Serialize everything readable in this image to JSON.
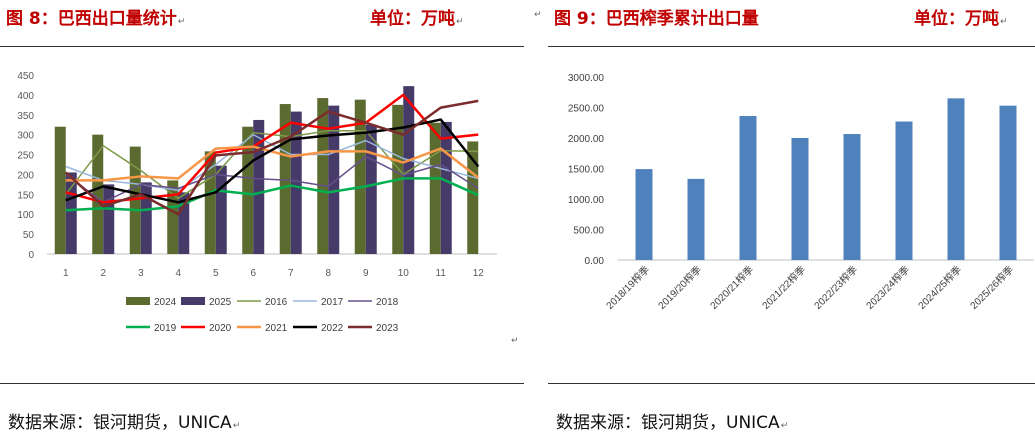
{
  "left": {
    "title": "图 8：巴西出口量统计",
    "unit": "单位：万吨",
    "source": "数据来源：银河期货，UNICA"
  },
  "right": {
    "title": "图 9：巴西榨季累计出口量",
    "unit": "单位：万吨",
    "source": "数据来源：银河期货，UNICA"
  },
  "chart_data": [
    {
      "type": "bar",
      "categories": [
        "1",
        "2",
        "3",
        "4",
        "5",
        "6",
        "7",
        "8",
        "9",
        "10",
        "11",
        "12"
      ],
      "ylim": [
        0,
        450
      ],
      "yticks": [
        0,
        50,
        100,
        150,
        200,
        250,
        300,
        350,
        400,
        450
      ],
      "legend_placement": "bottom",
      "bar_series": [
        {
          "name": "2024",
          "color": "#5b6b2f",
          "values": [
            320,
            300,
            270,
            185,
            258,
            320,
            377,
            392,
            388,
            375,
            330,
            283
          ]
        },
        {
          "name": "2025",
          "color": "#463a68",
          "values": [
            205,
            175,
            180,
            155,
            222,
            337,
            358,
            373,
            325,
            422,
            332,
            null
          ]
        }
      ],
      "line_series": [
        {
          "name": "2016",
          "color": "#7e9a48",
          "width": 1.5,
          "values": [
            150,
            272,
            210,
            140,
            200,
            305,
            295,
            310,
            310,
            200,
            260,
            258
          ]
        },
        {
          "name": "2017",
          "color": "#9ab5dc",
          "width": 1.5,
          "values": [
            220,
            185,
            175,
            160,
            225,
            300,
            250,
            250,
            285,
            240,
            215,
            190
          ]
        },
        {
          "name": "2018",
          "color": "#66508c",
          "width": 1.5,
          "values": [
            200,
            130,
            175,
            165,
            200,
            190,
            185,
            170,
            245,
            198,
            225,
            165
          ]
        },
        {
          "name": "2019",
          "color": "#00b050",
          "width": 2.5,
          "values": [
            110,
            115,
            110,
            120,
            160,
            150,
            172,
            155,
            170,
            190,
            190,
            148
          ]
        },
        {
          "name": "2020",
          "color": "#ff0000",
          "width": 2.5,
          "values": [
            155,
            130,
            140,
            150,
            255,
            270,
            330,
            315,
            330,
            400,
            290,
            300
          ]
        },
        {
          "name": "2021",
          "color": "#f79646",
          "width": 2.5,
          "values": [
            185,
            185,
            195,
            190,
            265,
            270,
            245,
            258,
            258,
            230,
            265,
            192
          ]
        },
        {
          "name": "2022",
          "color": "#000000",
          "width": 2.5,
          "values": [
            135,
            170,
            150,
            130,
            155,
            235,
            288,
            298,
            305,
            318,
            338,
            220
          ]
        },
        {
          "name": "2023",
          "color": "#7b2c2c",
          "width": 2.5,
          "values": [
            205,
            120,
            150,
            100,
            248,
            256,
            295,
            358,
            330,
            300,
            368,
            385
          ]
        }
      ]
    },
    {
      "type": "bar",
      "categories": [
        "2018/19榨季",
        "2019/20榨季",
        "2020/21榨季",
        "2021/22榨季",
        "2022/23榨季",
        "2023/24榨季",
        "2024/25榨季",
        "2025/26榨季"
      ],
      "values": [
        1490,
        1330,
        2360,
        2000,
        2065,
        2270,
        2650,
        2530
      ],
      "ylim": [
        0,
        3000
      ],
      "yticks": [
        "0.00",
        "500.00",
        "1000.00",
        "1500.00",
        "2000.00",
        "2500.00",
        "3000.00"
      ],
      "bar_color": "#4f81bd"
    }
  ]
}
